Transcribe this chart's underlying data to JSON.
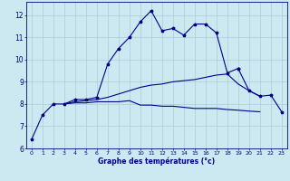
{
  "xlabel": "Graphe des températures (°c)",
  "background_color": "#cce8f0",
  "line_color": "#00008b",
  "grid_color": "#aaccd8",
  "xlim": [
    -0.5,
    23.5
  ],
  "ylim": [
    6,
    12.6
  ],
  "xticks": [
    0,
    1,
    2,
    3,
    4,
    5,
    6,
    7,
    8,
    9,
    10,
    11,
    12,
    13,
    14,
    15,
    16,
    17,
    18,
    19,
    20,
    21,
    22,
    23
  ],
  "yticks": [
    6,
    7,
    8,
    9,
    10,
    11,
    12
  ],
  "series1_x": [
    0,
    1,
    2,
    3,
    4,
    5,
    6,
    7,
    8,
    9,
    10,
    11,
    12,
    13,
    14,
    15,
    16,
    17,
    18,
    19
  ],
  "series1_y": [
    6.4,
    7.5,
    8.0,
    8.0,
    8.2,
    8.2,
    8.3,
    9.8,
    10.5,
    11.0,
    11.7,
    12.2,
    11.3,
    11.4,
    11.1,
    11.6,
    11.6,
    11.2,
    9.4,
    9.6
  ],
  "series2_x": [
    3,
    4,
    5,
    6,
    7,
    8,
    9,
    10,
    11,
    12,
    13,
    14,
    15,
    16,
    17,
    18,
    19,
    20,
    21
  ],
  "series2_y": [
    8.0,
    8.1,
    8.15,
    8.2,
    8.3,
    8.45,
    8.6,
    8.75,
    8.85,
    8.9,
    9.0,
    9.05,
    9.1,
    9.2,
    9.3,
    9.35,
    8.9,
    8.6,
    8.35
  ],
  "series3_x": [
    3,
    4,
    5,
    6,
    7,
    8,
    9,
    10,
    11,
    12,
    13,
    14,
    15,
    16,
    17,
    18,
    19,
    20,
    21
  ],
  "series3_y": [
    8.0,
    8.05,
    8.05,
    8.1,
    8.1,
    8.1,
    8.15,
    7.95,
    7.95,
    7.9,
    7.9,
    7.85,
    7.8,
    7.8,
    7.8,
    7.75,
    7.72,
    7.68,
    7.65
  ],
  "series4_x": [
    19,
    20,
    21,
    22,
    23
  ],
  "series4_y": [
    9.6,
    8.6,
    8.35,
    8.4,
    7.65
  ]
}
